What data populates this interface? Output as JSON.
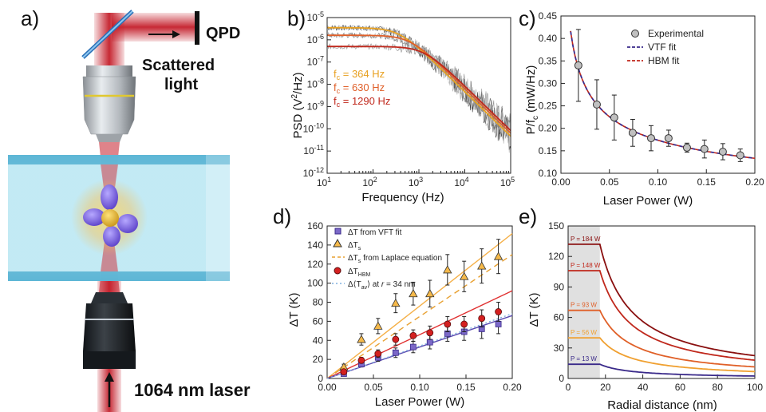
{
  "panel_labels": {
    "a": "a)",
    "b": "b)",
    "c": "c)",
    "d": "d)",
    "e": "e)"
  },
  "schematic": {
    "qpd_label": "QPD",
    "scattered_line1": "Scattered",
    "scattered_line2": "light",
    "laser_label": "1064 nm laser"
  },
  "chart_data": [
    {
      "panel": "b",
      "type": "line",
      "xlabel": "Frequency (Hz)",
      "ylabel_main": "PSD (V",
      "ylabel_sup": "2",
      "ylabel_end": "/Hz)",
      "x_scale": "log",
      "y_scale": "log",
      "xlim": [
        10,
        100000
      ],
      "ylim": [
        1e-12,
        1e-05
      ],
      "x_ticks": [
        {
          "v": 10,
          "b": "10",
          "e": "1"
        },
        {
          "v": 100,
          "b": "10",
          "e": "2"
        },
        {
          "v": 1000,
          "b": "10",
          "e": "3"
        },
        {
          "v": 10000,
          "b": "10",
          "e": "4"
        },
        {
          "v": 100000,
          "b": "10",
          "e": "5"
        }
      ],
      "y_ticks": [
        {
          "v": 1e-05,
          "b": "10",
          "e": "-5"
        },
        {
          "v": 1e-06,
          "b": "10",
          "e": "-6"
        },
        {
          "v": 1e-07,
          "b": "10",
          "e": "-7"
        },
        {
          "v": 1e-08,
          "b": "10",
          "e": "-8"
        },
        {
          "v": 1e-09,
          "b": "10",
          "e": "-9"
        },
        {
          "v": 1e-10,
          "b": "10",
          "e": "-10"
        },
        {
          "v": 1e-11,
          "b": "10",
          "e": "-11"
        },
        {
          "v": 1e-12,
          "b": "10",
          "e": "-12"
        }
      ],
      "series": [
        {
          "fc_text": "364 Hz",
          "fc": 364,
          "plateau": 3.5e-06,
          "color": "#e8a020"
        },
        {
          "fc_text": "630 Hz",
          "fc": 630,
          "plateau": 1.6e-06,
          "color": "#e0602a"
        },
        {
          "fc_text": "1290 Hz",
          "fc": 1290,
          "plateau": 5e-07,
          "color": "#c0281c"
        }
      ],
      "fc_prefix": "f",
      "fc_sub": "c",
      "fc_eq": " = "
    },
    {
      "panel": "c",
      "type": "scatter",
      "xlabel": "Laser Power (W)",
      "ylabel_main": "P/f",
      "ylabel_sub": "c",
      "ylabel_end": " (mW/Hz)",
      "xlim": [
        0,
        0.2
      ],
      "ylim": [
        0.1,
        0.45
      ],
      "x_ticks": [
        "0.00",
        "0.05",
        "0.10",
        "0.15",
        "0.20"
      ],
      "y_ticks": [
        "0.10",
        "0.15",
        "0.20",
        "0.25",
        "0.30",
        "0.35",
        "0.40",
        "0.45"
      ],
      "legend": [
        "Experimental",
        "VTF fit",
        "HBM fit"
      ],
      "points": [
        {
          "x": 0.018,
          "y": 0.34,
          "err": 0.08
        },
        {
          "x": 0.037,
          "y": 0.253,
          "err": 0.055
        },
        {
          "x": 0.055,
          "y": 0.224,
          "err": 0.05
        },
        {
          "x": 0.074,
          "y": 0.19,
          "err": 0.03
        },
        {
          "x": 0.093,
          "y": 0.178,
          "err": 0.028
        },
        {
          "x": 0.111,
          "y": 0.178,
          "err": 0.018
        },
        {
          "x": 0.13,
          "y": 0.157,
          "err": 0.01
        },
        {
          "x": 0.148,
          "y": 0.154,
          "err": 0.02
        },
        {
          "x": 0.167,
          "y": 0.148,
          "err": 0.018
        },
        {
          "x": 0.185,
          "y": 0.14,
          "err": 0.014
        }
      ],
      "fit_A": 0.3296,
      "fit_n": 0.38,
      "fit_x0": 0.0185,
      "fit_range": [
        0.01,
        0.2
      ],
      "colors": {
        "point": "#c0c0c0",
        "vtf": "#3a2a8a",
        "hbm": "#c0281c"
      }
    },
    {
      "panel": "d",
      "type": "scatter",
      "xlabel": "Laser Power (W)",
      "ylabel": "ΔT (K)",
      "xlim": [
        0,
        0.2
      ],
      "ylim": [
        0,
        160
      ],
      "x_ticks": [
        "0.00",
        "0.05",
        "0.10",
        "0.15",
        "0.20"
      ],
      "y_ticks": [
        "0",
        "20",
        "40",
        "60",
        "80",
        "100",
        "120",
        "140",
        "160"
      ],
      "legend": [
        {
          "text": "ΔT from VFT fit"
        },
        {
          "text": "ΔT",
          "sub": "s"
        },
        {
          "text": "ΔT",
          "sub": "s",
          "tail": " from Laplace equation"
        },
        {
          "text": "ΔT",
          "sub": "HBM"
        },
        {
          "text": "Δ⟨T",
          "sub": "av",
          "tail": "⟩ at ",
          "ital": "r",
          "tail2": " = 34 nm"
        }
      ],
      "series": [
        {
          "name": "VFT",
          "color": "#7b68c8",
          "edge": "#3a2a8a",
          "marker": "square",
          "points": [
            {
              "x": 0.018,
              "y": 5,
              "err": 2
            },
            {
              "x": 0.037,
              "y": 15,
              "err": 3
            },
            {
              "x": 0.055,
              "y": 22,
              "err": 4
            },
            {
              "x": 0.074,
              "y": 27,
              "err": 5
            },
            {
              "x": 0.093,
              "y": 33,
              "err": 6
            },
            {
              "x": 0.111,
              "y": 38,
              "err": 7
            },
            {
              "x": 0.13,
              "y": 47,
              "err": 8
            },
            {
              "x": 0.148,
              "y": 49,
              "err": 9
            },
            {
              "x": 0.167,
              "y": 52,
              "err": 10
            },
            {
              "x": 0.185,
              "y": 57,
              "err": 10
            }
          ]
        },
        {
          "name": "Ts",
          "color": "#f5b94a",
          "edge": "#333",
          "marker": "triangle",
          "points": [
            {
              "x": 0.018,
              "y": 12,
              "err": 3
            },
            {
              "x": 0.037,
              "y": 41,
              "err": 6
            },
            {
              "x": 0.055,
              "y": 55,
              "err": 8
            },
            {
              "x": 0.074,
              "y": 79,
              "err": 10
            },
            {
              "x": 0.093,
              "y": 89,
              "err": 12
            },
            {
              "x": 0.111,
              "y": 89,
              "err": 14
            },
            {
              "x": 0.13,
              "y": 114,
              "err": 16
            },
            {
              "x": 0.148,
              "y": 107,
              "err": 16
            },
            {
              "x": 0.167,
              "y": 118,
              "err": 18
            },
            {
              "x": 0.185,
              "y": 128,
              "err": 18
            }
          ]
        },
        {
          "name": "HBM",
          "color": "#d42020",
          "edge": "#5a0a0a",
          "marker": "circle",
          "points": [
            {
              "x": 0.018,
              "y": 7,
              "err": 2
            },
            {
              "x": 0.037,
              "y": 19,
              "err": 3
            },
            {
              "x": 0.055,
              "y": 26,
              "err": 4
            },
            {
              "x": 0.074,
              "y": 41,
              "err": 6
            },
            {
              "x": 0.093,
              "y": 45,
              "err": 6
            },
            {
              "x": 0.111,
              "y": 48,
              "err": 7
            },
            {
              "x": 0.13,
              "y": 57,
              "err": 8
            },
            {
              "x": 0.148,
              "y": 57,
              "err": 8
            },
            {
              "x": 0.167,
              "y": 63,
              "err": 9
            },
            {
              "x": 0.185,
              "y": 70,
              "err": 10
            }
          ]
        }
      ],
      "lines": [
        {
          "color": "#f5b048",
          "dash": "",
          "slope": 760
        },
        {
          "color": "#e8a030",
          "dash": "7,5",
          "slope": 650
        },
        {
          "color": "#e03030",
          "dash": "",
          "slope": 460
        },
        {
          "color": "#5a4ab0",
          "dash": "",
          "slope": 330
        },
        {
          "color": "#80b0e0",
          "dash": "2,3",
          "slope": 340
        }
      ]
    },
    {
      "panel": "e",
      "type": "line",
      "xlabel": "Radial distance (nm)",
      "ylabel": "ΔT (K)",
      "xlim": [
        0,
        100
      ],
      "ylim": [
        0,
        150
      ],
      "x_ticks": [
        "0",
        "20",
        "40",
        "60",
        "80",
        "100"
      ],
      "y_ticks": [
        "0",
        "30",
        "60",
        "90",
        "120",
        "150"
      ],
      "shade_to": 17,
      "R": 17,
      "series": [
        {
          "label": "P = 13 W",
          "T0": 14,
          "color": "#3a2a8a"
        },
        {
          "label": "P = 56 W",
          "T0": 40,
          "color": "#f0a030"
        },
        {
          "label": "P = 93 W",
          "T0": 67,
          "color": "#e06028"
        },
        {
          "label": "P = 148 W",
          "T0": 106,
          "color": "#c0281c"
        },
        {
          "label": "P = 184 W",
          "T0": 132,
          "color": "#8a1010"
        }
      ]
    }
  ]
}
